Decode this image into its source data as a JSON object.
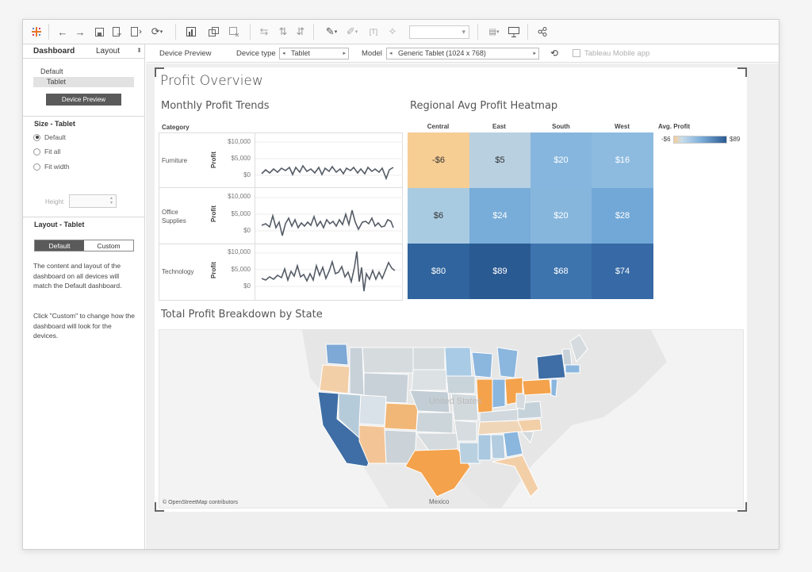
{
  "toolbar": {
    "icons": [
      "tableau-logo-icon",
      "undo-icon",
      "redo-icon",
      "save-icon",
      "new-datasource-icon",
      "new-sheet-icon",
      "refresh-icon",
      "add-chart-icon",
      "duplicate-icon",
      "clear-icon",
      "swap-icon",
      "sort-asc-icon",
      "sort-desc-icon",
      "highlight-icon",
      "annotate-icon",
      "label-icon",
      "pin-icon",
      "fit-icon",
      "presentation-icon",
      "share-icon"
    ]
  },
  "sidebar": {
    "tab_dashboard": "Dashboard",
    "tab_layout": "Layout",
    "devices": [
      "Default",
      "Tablet"
    ],
    "device_preview_button": "Device Preview",
    "size_title": "Size - Tablet",
    "size_options": [
      "Default",
      "Fit all",
      "Fit width"
    ],
    "height_label": "Height",
    "layout_title": "Layout - Tablet",
    "layout_default": "Default",
    "layout_custom": "Custom",
    "help_1": "The content and layout of the dashboard on all devices will match the Default dashboard.",
    "help_2": "Click \"Custom\" to change how the dashboard will look for the devices."
  },
  "devicebar": {
    "device_preview": "Device Preview",
    "device_type_label": "Device type",
    "device_type_value": "Tablet",
    "model_label": "Model",
    "model_value": "Generic Tablet (1024 x 768)",
    "mobile_app_label": "Tableau Mobile app"
  },
  "dashboard": {
    "title": "Profit Overview",
    "trends_title": "Monthly Profit Trends",
    "category_header": "Category",
    "categories": [
      "Furniture",
      "Office Supplies",
      "Technology"
    ],
    "y_ticks": [
      "$10,000",
      "$5,000",
      "$0"
    ],
    "y_label": "Profit",
    "heatmap_title": "Regional Avg Profit Heatmap",
    "regions": [
      "Central",
      "East",
      "South",
      "West"
    ],
    "heat_values": [
      [
        "-$6",
        "$5",
        "$20",
        "$16"
      ],
      [
        "$6",
        "$24",
        "$20",
        "$28"
      ],
      [
        "$80",
        "$89",
        "$68",
        "$74"
      ]
    ],
    "legend_title": "Avg. Profit",
    "legend_min": "-$6",
    "legend_max": "$89",
    "map_title": "Total Profit Breakdown by State",
    "map_label_country": "United States",
    "map_label_mexico": "Mexico",
    "map_attribution": "© OpenStreetMap contributors"
  }
}
